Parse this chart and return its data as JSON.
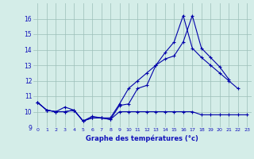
{
  "xlabel": "Graphe des températures (°c)",
  "background_color": "#d4ede8",
  "line_color": "#0000aa",
  "grid_color": "#9bbfb8",
  "text_color": "#1111bb",
  "hours": [
    0,
    1,
    2,
    3,
    4,
    5,
    6,
    7,
    8,
    9,
    10,
    11,
    12,
    13,
    14,
    15,
    16,
    17,
    18,
    19,
    20,
    21,
    22,
    23
  ],
  "line1": [
    10.6,
    10.1,
    10.0,
    10.0,
    10.1,
    9.4,
    9.6,
    9.6,
    9.5,
    10.4,
    10.5,
    11.5,
    11.7,
    13.0,
    13.4,
    13.6,
    14.5,
    16.2,
    14.1,
    13.5,
    12.9,
    12.1,
    null,
    null
  ],
  "line2": [
    10.6,
    10.1,
    10.0,
    10.0,
    10.1,
    9.4,
    9.6,
    9.6,
    9.5,
    10.0,
    10.0,
    10.0,
    10.0,
    10.0,
    10.0,
    10.0,
    10.0,
    10.0,
    9.8,
    9.8,
    9.8,
    9.8,
    9.8,
    9.8
  ],
  "line3": [
    10.6,
    10.1,
    10.0,
    10.3,
    10.1,
    9.4,
    9.7,
    9.6,
    9.6,
    10.5,
    11.5,
    12.0,
    12.5,
    13.0,
    13.8,
    14.5,
    16.2,
    14.1,
    13.5,
    13.0,
    12.5,
    12.0,
    11.5,
    null
  ],
  "ylim_min": 9,
  "ylim_max": 17,
  "yticks": [
    9,
    10,
    11,
    12,
    13,
    14,
    15,
    16
  ],
  "xlim_min": -0.5,
  "xlim_max": 23.5,
  "xticks": [
    0,
    1,
    2,
    3,
    4,
    5,
    6,
    7,
    8,
    9,
    10,
    11,
    12,
    13,
    14,
    15,
    16,
    17,
    18,
    19,
    20,
    21,
    22,
    23
  ],
  "xlabel_fontsize": 6.0,
  "tick_fontsize": 4.5,
  "ytick_fontsize": 5.5,
  "linewidth": 0.8,
  "marker": "+",
  "markersize": 3.0
}
